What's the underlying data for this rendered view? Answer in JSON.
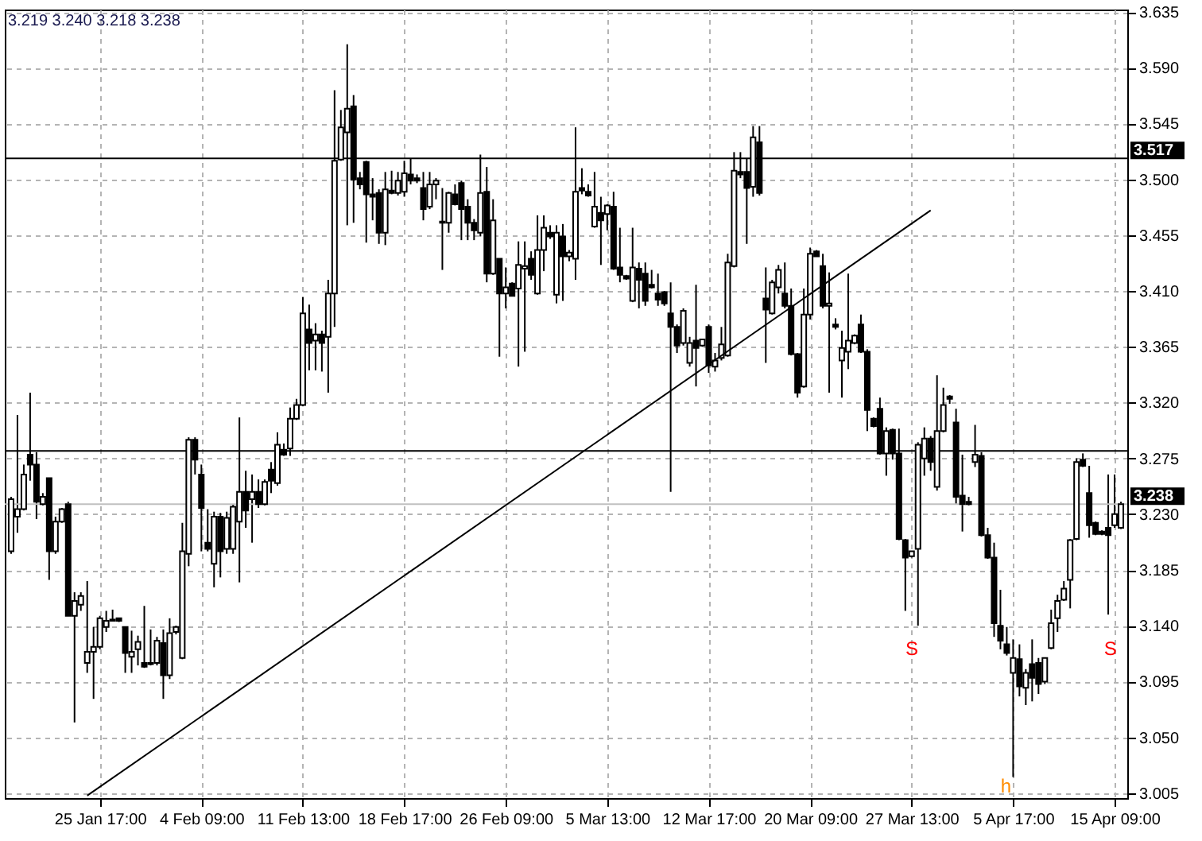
{
  "chart_data": {
    "type": "candlestick",
    "color": "#000000",
    "categories": [
      null,
      null,
      null,
      null,
      null,
      null,
      null,
      null,
      null,
      null,
      null,
      null,
      null,
      null,
      "25 Jan 17:00",
      null,
      null,
      null,
      null,
      null,
      null,
      null,
      null,
      null,
      null,
      null,
      null,
      null,
      null,
      null,
      "4 Feb 09:00",
      null,
      null,
      null,
      null,
      null,
      null,
      null,
      null,
      null,
      null,
      null,
      null,
      null,
      null,
      null,
      "11 Feb 13:00",
      null,
      null,
      null,
      null,
      null,
      null,
      null,
      null,
      null,
      null,
      null,
      null,
      null,
      null,
      null,
      "18 Feb 17:00",
      null,
      null,
      null,
      null,
      null,
      null,
      null,
      null,
      null,
      null,
      null,
      null,
      null,
      null,
      null,
      "26 Feb 09:00",
      null,
      null,
      null,
      null,
      null,
      null,
      null,
      null,
      null,
      null,
      null,
      null,
      null,
      null,
      null,
      "5 Mar 13:00",
      null,
      null,
      null,
      null,
      null,
      null,
      null,
      null,
      null,
      null,
      null,
      null,
      null,
      null,
      null,
      "12 Mar 17:00",
      null,
      null,
      null,
      null,
      null,
      null,
      null,
      null,
      null,
      null,
      null,
      null,
      null,
      null,
      null,
      "20 Mar 09:00",
      null,
      null,
      null,
      null,
      null,
      null,
      null,
      null,
      null,
      null,
      null,
      null,
      null,
      null,
      null,
      "27 Mar 13:00",
      null,
      null,
      null,
      null,
      null,
      null,
      null,
      null,
      null,
      null,
      null,
      null,
      null,
      null,
      null,
      "5 Apr 17:00",
      null,
      null,
      null,
      null,
      null,
      null,
      null,
      null,
      null,
      null,
      null,
      null,
      null,
      null,
      null,
      "15 Apr 09:00",
      null
    ],
    "ohlc": [
      [
        3.2,
        3.244,
        3.198,
        3.242
      ],
      [
        3.228,
        3.31,
        3.215,
        3.234
      ],
      [
        3.234,
        3.27,
        3.233,
        3.262
      ],
      [
        3.278,
        3.328,
        3.257,
        3.27
      ],
      [
        3.27,
        3.28,
        3.226,
        3.24
      ],
      [
        3.238,
        3.247,
        3.237,
        3.244
      ],
      [
        3.259,
        3.259,
        3.177,
        3.2
      ],
      [
        3.2,
        3.228,
        3.198,
        3.224
      ],
      [
        3.224,
        3.235,
        3.223,
        3.234
      ],
      [
        3.238,
        3.24,
        3.148,
        3.148
      ],
      [
        3.148,
        3.167,
        3.062,
        3.16
      ],
      [
        3.157,
        3.167,
        3.152,
        3.164
      ],
      [
        3.11,
        3.176,
        3.102,
        3.119
      ],
      [
        3.119,
        3.139,
        3.081,
        3.123
      ],
      [
        3.123,
        3.148,
        3.121,
        3.146
      ],
      [
        3.139,
        3.152,
        3.135,
        3.144
      ],
      [
        3.145,
        3.153,
        3.144,
        3.144
      ],
      [
        3.146,
        3.146,
        3.143,
        3.144
      ],
      [
        3.139,
        3.139,
        3.102,
        3.118
      ],
      [
        3.115,
        3.136,
        3.102,
        3.119
      ],
      [
        3.121,
        3.132,
        3.108,
        3.127
      ],
      [
        3.11,
        3.156,
        3.106,
        3.107
      ],
      [
        3.109,
        3.137,
        3.108,
        3.11
      ],
      [
        3.11,
        3.131,
        3.108,
        3.128
      ],
      [
        3.126,
        3.137,
        3.081,
        3.1
      ],
      [
        3.1,
        3.146,
        3.097,
        3.134
      ],
      [
        3.135,
        3.14,
        3.133,
        3.139
      ],
      [
        3.114,
        3.223,
        3.113,
        3.2
      ],
      [
        3.198,
        3.292,
        3.188,
        3.29
      ],
      [
        3.29,
        3.292,
        3.262,
        3.274
      ],
      [
        3.262,
        3.27,
        3.2,
        3.235
      ],
      [
        3.207,
        3.234,
        3.2,
        3.202
      ],
      [
        3.19,
        3.232,
        3.171,
        3.228
      ],
      [
        3.228,
        3.231,
        3.179,
        3.2
      ],
      [
        3.202,
        3.232,
        3.198,
        3.227
      ],
      [
        3.202,
        3.238,
        3.198,
        3.236
      ],
      [
        3.224,
        3.308,
        3.175,
        3.248
      ],
      [
        3.248,
        3.265,
        3.219,
        3.233
      ],
      [
        3.242,
        3.262,
        3.207,
        3.248
      ],
      [
        3.248,
        3.258,
        3.235,
        3.238
      ],
      [
        3.238,
        3.258,
        3.237,
        3.256
      ],
      [
        3.266,
        3.272,
        3.247,
        3.257
      ],
      [
        3.255,
        3.296,
        3.253,
        3.286
      ],
      [
        3.282,
        3.287,
        3.277,
        3.278
      ],
      [
        3.283,
        3.316,
        3.277,
        3.307
      ],
      [
        3.307,
        3.323,
        3.306,
        3.318
      ],
      [
        3.318,
        3.405,
        3.317,
        3.392
      ],
      [
        3.379,
        3.399,
        3.346,
        3.368
      ],
      [
        3.37,
        3.384,
        3.346,
        3.375
      ],
      [
        3.375,
        3.378,
        3.345,
        3.368
      ],
      [
        3.373,
        3.419,
        3.328,
        3.408
      ],
      [
        3.408,
        3.572,
        3.381,
        3.515
      ],
      [
        3.516,
        3.556,
        3.515,
        3.542
      ],
      [
        3.538,
        3.609,
        3.463,
        3.557
      ],
      [
        3.559,
        3.568,
        3.465,
        3.5
      ],
      [
        3.501,
        3.506,
        3.492,
        3.496
      ],
      [
        3.514,
        3.515,
        3.449,
        3.488
      ],
      [
        3.488,
        3.501,
        3.467,
        3.486
      ],
      [
        3.489,
        3.492,
        3.448,
        3.457
      ],
      [
        3.457,
        3.506,
        3.447,
        3.492
      ],
      [
        3.491,
        3.507,
        3.488,
        3.489
      ],
      [
        3.489,
        3.506,
        3.487,
        3.499
      ],
      [
        3.49,
        3.515,
        3.486,
        3.505
      ],
      [
        3.504,
        3.517,
        3.496,
        3.499
      ],
      [
        3.501,
        3.504,
        3.497,
        3.499
      ],
      [
        3.493,
        3.506,
        3.467,
        3.476
      ],
      [
        3.478,
        3.506,
        3.476,
        3.496
      ],
      [
        3.496,
        3.501,
        3.484,
        3.499
      ],
      [
        3.466,
        3.493,
        3.427,
        3.465
      ],
      [
        3.465,
        3.49,
        3.457,
        3.489
      ],
      [
        3.488,
        3.496,
        3.479,
        3.48
      ],
      [
        3.497,
        3.499,
        3.451,
        3.476
      ],
      [
        3.478,
        3.484,
        3.451,
        3.465
      ],
      [
        3.465,
        3.468,
        3.451,
        3.459
      ],
      [
        3.457,
        3.52,
        3.454,
        3.489
      ],
      [
        3.49,
        3.51,
        3.417,
        3.424
      ],
      [
        3.424,
        3.484,
        3.423,
        3.467
      ],
      [
        3.436,
        3.436,
        3.357,
        3.408
      ],
      [
        3.408,
        3.429,
        3.396,
        3.413
      ],
      [
        3.416,
        3.417,
        3.406,
        3.406
      ],
      [
        3.412,
        3.45,
        3.349,
        3.431
      ],
      [
        3.428,
        3.45,
        3.361,
        3.43
      ],
      [
        3.436,
        3.442,
        3.419,
        3.423
      ],
      [
        3.408,
        3.471,
        3.407,
        3.443
      ],
      [
        3.443,
        3.471,
        3.426,
        3.461
      ],
      [
        3.457,
        3.463,
        3.452,
        3.454
      ],
      [
        3.407,
        3.463,
        3.4,
        3.457
      ],
      [
        3.454,
        3.464,
        3.402,
        3.438
      ],
      [
        3.438,
        3.443,
        3.434,
        3.441
      ],
      [
        3.436,
        3.542,
        3.419,
        3.49
      ],
      [
        3.493,
        3.509,
        3.488,
        3.491
      ],
      [
        3.49,
        3.496,
        3.486,
        3.487
      ],
      [
        3.462,
        3.506,
        3.461,
        3.478
      ],
      [
        3.473,
        3.486,
        3.431,
        3.467
      ],
      [
        3.472,
        3.48,
        3.459,
        3.479
      ],
      [
        3.478,
        3.49,
        3.427,
        3.428
      ],
      [
        3.429,
        3.461,
        3.417,
        3.423
      ],
      [
        3.422,
        3.423,
        3.419,
        3.42
      ],
      [
        3.402,
        3.461,
        3.401,
        3.429
      ],
      [
        3.428,
        3.433,
        3.396,
        3.419
      ],
      [
        3.424,
        3.433,
        3.398,
        3.402
      ],
      [
        3.415,
        3.427,
        3.412,
        3.413
      ],
      [
        3.408,
        3.424,
        3.398,
        3.403
      ],
      [
        3.409,
        3.41,
        3.398,
        3.4
      ],
      [
        3.392,
        3.417,
        3.248,
        3.381
      ],
      [
        3.381,
        3.383,
        3.36,
        3.366
      ],
      [
        3.368,
        3.396,
        3.366,
        3.394
      ],
      [
        3.352,
        3.373,
        3.349,
        3.368
      ],
      [
        3.37,
        3.415,
        3.333,
        3.364
      ],
      [
        3.366,
        3.371,
        3.365,
        3.371
      ],
      [
        3.381,
        3.383,
        3.344,
        3.35
      ],
      [
        3.349,
        3.36,
        3.345,
        3.354
      ],
      [
        3.356,
        3.381,
        3.354,
        3.367
      ],
      [
        3.358,
        3.44,
        3.357,
        3.433
      ],
      [
        3.43,
        3.522,
        3.429,
        3.507
      ],
      [
        3.506,
        3.522,
        3.501,
        3.504
      ],
      [
        3.506,
        3.517,
        3.448,
        3.493
      ],
      [
        3.494,
        3.543,
        3.486,
        3.534
      ],
      [
        3.53,
        3.543,
        3.487,
        3.489
      ],
      [
        3.404,
        3.429,
        3.352,
        3.395
      ],
      [
        3.392,
        3.419,
        3.391,
        3.417
      ],
      [
        3.413,
        3.431,
        3.408,
        3.427
      ],
      [
        3.408,
        3.433,
        3.396,
        3.398
      ],
      [
        3.398,
        3.412,
        3.358,
        3.359
      ],
      [
        3.359,
        3.36,
        3.324,
        3.328
      ],
      [
        3.333,
        3.412,
        3.332,
        3.391
      ],
      [
        3.391,
        3.445,
        3.387,
        3.44
      ],
      [
        3.442,
        3.443,
        3.438,
        3.438
      ],
      [
        3.43,
        3.44,
        3.396,
        3.398
      ],
      [
        3.398,
        3.425,
        3.328,
        3.4
      ],
      [
        3.383,
        3.388,
        3.379,
        3.381
      ],
      [
        3.354,
        3.378,
        3.324,
        3.364
      ],
      [
        3.361,
        3.424,
        3.347,
        3.37
      ],
      [
        3.368,
        3.375,
        3.367,
        3.374
      ],
      [
        3.383,
        3.391,
        3.36,
        3.361
      ],
      [
        3.361,
        3.363,
        3.297,
        3.314
      ],
      [
        3.307,
        3.308,
        3.3,
        3.301
      ],
      [
        3.315,
        3.324,
        3.278,
        3.279
      ],
      [
        3.279,
        3.3,
        3.261,
        3.297
      ],
      [
        3.298,
        3.299,
        3.274,
        3.279
      ],
      [
        3.279,
        3.299,
        3.209,
        3.21
      ],
      [
        3.209,
        3.21,
        3.152,
        3.195
      ],
      [
        3.196,
        3.2,
        3.195,
        3.2
      ],
      [
        3.202,
        3.288,
        3.14,
        3.286
      ],
      [
        3.275,
        3.3,
        3.261,
        3.291
      ],
      [
        3.291,
        3.293,
        3.265,
        3.272
      ],
      [
        3.252,
        3.342,
        3.249,
        3.297
      ],
      [
        3.297,
        3.332,
        3.296,
        3.318
      ],
      [
        3.325,
        3.326,
        3.319,
        3.323
      ],
      [
        3.304,
        3.315,
        3.238,
        3.244
      ],
      [
        3.245,
        3.278,
        3.216,
        3.238
      ],
      [
        3.24,
        3.244,
        3.237,
        3.238
      ],
      [
        3.272,
        3.302,
        3.268,
        3.278
      ],
      [
        3.277,
        3.28,
        3.212,
        3.213
      ],
      [
        3.213,
        3.219,
        3.194,
        3.195
      ],
      [
        3.195,
        3.207,
        3.131,
        3.142
      ],
      [
        3.14,
        3.169,
        3.121,
        3.128
      ],
      [
        3.125,
        3.139,
        3.116,
        3.118
      ],
      [
        3.102,
        3.129,
        3.018,
        3.114
      ],
      [
        3.113,
        3.125,
        3.083,
        3.091
      ],
      [
        3.09,
        3.105,
        3.076,
        3.102
      ],
      [
        3.109,
        3.129,
        3.079,
        3.098
      ],
      [
        3.11,
        3.114,
        3.085,
        3.093
      ],
      [
        3.095,
        3.114,
        3.093,
        3.114
      ],
      [
        3.122,
        3.153,
        3.121,
        3.142
      ],
      [
        3.146,
        3.165,
        3.135,
        3.16
      ],
      [
        3.161,
        3.176,
        3.16,
        3.17
      ],
      [
        3.177,
        3.21,
        3.154,
        3.209
      ],
      [
        3.21,
        3.275,
        3.209,
        3.272
      ],
      [
        3.274,
        3.279,
        3.268,
        3.269
      ],
      [
        3.247,
        3.269,
        3.211,
        3.221
      ],
      [
        3.223,
        3.224,
        3.213,
        3.214
      ],
      [
        3.216,
        3.217,
        3.213,
        3.214
      ],
      [
        3.219,
        3.262,
        3.149,
        3.213
      ],
      [
        3.221,
        3.262,
        3.219,
        3.23
      ],
      [
        3.219,
        3.24,
        3.218,
        3.238
      ]
    ],
    "series": [
      {
        "type": "line",
        "color": "#000000",
        "values": [
          null,
          null,
          null,
          null,
          null,
          null,
          null,
          null,
          null,
          null,
          null,
          null,
          3.003,
          null,
          null,
          null,
          null,
          null,
          null,
          null,
          null,
          null,
          null,
          null,
          null,
          null,
          null,
          null,
          null,
          null,
          null,
          null,
          null,
          null,
          null,
          null,
          null,
          null,
          null,
          null,
          null,
          null,
          null,
          null,
          null,
          null,
          null,
          null,
          null,
          null,
          null,
          null,
          null,
          null,
          null,
          null,
          null,
          null,
          null,
          null,
          null,
          null,
          null,
          null,
          null,
          null,
          null,
          null,
          null,
          null,
          null,
          null,
          null,
          null,
          null,
          null,
          null,
          null,
          null,
          null,
          null,
          null,
          null,
          null,
          null,
          null,
          null,
          null,
          null,
          null,
          null,
          null,
          null,
          null,
          null,
          null,
          null,
          null,
          null,
          null,
          null,
          null,
          null,
          null,
          null,
          null,
          null,
          null,
          null,
          null,
          null,
          null,
          null,
          null,
          null,
          null,
          null,
          null,
          null,
          null,
          null,
          null,
          null,
          null,
          null,
          null,
          null,
          null,
          null,
          null,
          null,
          null,
          null,
          null,
          null,
          null,
          null,
          null,
          null,
          null,
          null,
          null,
          null,
          null,
          null,
          3.475,
          null,
          null,
          null,
          null,
          null,
          null,
          null,
          null,
          null,
          null,
          null,
          null,
          null,
          null,
          null,
          null,
          null,
          null,
          null,
          null,
          null,
          null,
          null,
          null,
          null,
          null,
          null,
          null,
          null,
          null
        ]
      }
    ],
    "ylim": [
      3.001,
      3.637
    ],
    "yticks": [
      3.005,
      {
        "value": 3.05,
        "label": "3.050"
      },
      3.095,
      {
        "value": 3.14,
        "label": "3.140"
      },
      3.185,
      {
        "value": 3.23,
        "label": "3.230"
      },
      3.275,
      {
        "value": 3.32,
        "label": "3.320"
      },
      3.365,
      {
        "value": 3.41,
        "label": "3.410"
      },
      3.455,
      {
        "value": 3.5,
        "label": "3.500"
      },
      3.545,
      {
        "value": 3.59,
        "label": "3.590"
      },
      3.635
    ],
    "grid": true,
    "ref_lines": [
      {
        "axis": "y",
        "value": 3.517,
        "label": "3.517",
        "color": "#000000"
      },
      {
        "axis": "y",
        "value": 3.281,
        "color": "#000000"
      },
      {
        "axis": "y",
        "value": 3.238,
        "label": "3.238",
        "color": "#c0c0c0"
      }
    ],
    "annotations": [
      "3.219 3.240 3.218 3.238",
      "S",
      "h",
      "S"
    ]
  }
}
